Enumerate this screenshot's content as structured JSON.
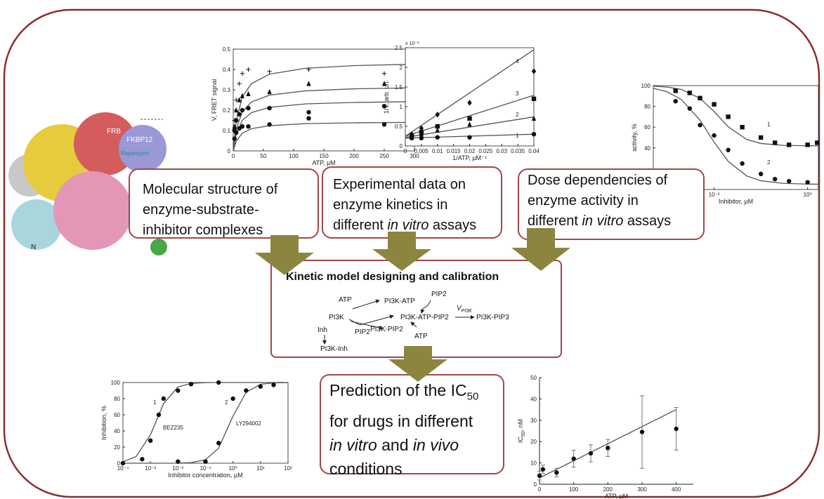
{
  "protein": {
    "labels": [
      "FRB",
      "FKBP12",
      "Rapamycin",
      "N"
    ]
  },
  "boxes": [
    {
      "lines": [
        [
          "Molecular structure of"
        ],
        [
          "enzyme-substrate-"
        ],
        [
          "inhibitor complexes"
        ]
      ]
    },
    {
      "lines": [
        [
          "Experimental data on"
        ],
        [
          "enzyme kinetics in"
        ],
        [
          "different ",
          "in vitro",
          " assays"
        ]
      ]
    },
    {
      "lines": [
        [
          "Dose dependencies of"
        ],
        [
          "enzyme activity in"
        ],
        [
          "different ",
          "in vitro",
          " assays"
        ]
      ]
    },
    {
      "lines": [
        [
          "Prediction of the IC",
          "50"
        ],
        [
          "for drugs in different"
        ],
        [
          "in vitro",
          " and ",
          "in vivo"
        ],
        [
          "conditions"
        ]
      ]
    }
  ],
  "model": {
    "title": "Kinetic model designing and calibration",
    "labels": [
      "ATP",
      "PI3K-ATP",
      "PIP2",
      "PI3K",
      "PI3K-ATP-PIP2",
      "V",
      "PI3K",
      "PI3K-PIP3",
      "Inh",
      "PIP2",
      "PI3K-PIP2",
      "ATP",
      "PI3K-Inh"
    ]
  },
  "charts": [
    {
      "type": "scatter",
      "frame": "box",
      "xlabel": "ATP, µM",
      "ylabel": "V, FRET signal",
      "xlim": [
        0,
        300
      ],
      "ylim": [
        0,
        0.5
      ],
      "xticks": [
        0,
        50,
        100,
        150,
        200,
        250,
        300
      ],
      "yticks": [
        0,
        0.1,
        0.2,
        0.3,
        0.4,
        0.5
      ],
      "series": [
        {
          "marker": "plus",
          "x": [
            2,
            5,
            10,
            15,
            25,
            60,
            125,
            250
          ],
          "values": [
            0.15,
            0.25,
            0.33,
            0.38,
            0.4,
            0.39,
            0.4,
            0.38
          ]
        },
        {
          "marker": "triangle",
          "x": [
            2,
            5,
            10,
            15,
            25,
            60,
            125,
            250
          ],
          "values": [
            0.12,
            0.2,
            0.25,
            0.27,
            0.28,
            0.29,
            0.33,
            0.33
          ]
        },
        {
          "marker": "circle",
          "x": [
            2,
            5,
            10,
            15,
            25,
            60,
            125,
            250
          ],
          "values": [
            0.1,
            0.15,
            0.18,
            0.2,
            0.21,
            0.21,
            0.19,
            0.22
          ]
        },
        {
          "marker": "circle",
          "x": [
            2,
            5,
            10,
            15,
            25,
            60,
            125,
            250
          ],
          "values": [
            0.06,
            0.09,
            0.11,
            0.12,
            0.12,
            0.13,
            0.16,
            0.13
          ]
        }
      ],
      "fits": [
        {
          "x": [
            0,
            5,
            15,
            30,
            60,
            120,
            200,
            300
          ],
          "values": [
            0,
            0.147,
            0.264,
            0.33,
            0.377,
            0.406,
            0.419,
            0.426
          ]
        },
        {
          "x": [
            0,
            5,
            15,
            30,
            60,
            120,
            200,
            300
          ],
          "values": [
            0,
            0.107,
            0.192,
            0.24,
            0.274,
            0.295,
            0.305,
            0.31
          ]
        },
        {
          "x": [
            0,
            5,
            15,
            30,
            60,
            120,
            200,
            300
          ],
          "values": [
            0,
            0.083,
            0.15,
            0.188,
            0.214,
            0.231,
            0.238,
            0.242
          ]
        },
        {
          "x": [
            0,
            5,
            15,
            30,
            60,
            120,
            200,
            300
          ],
          "values": [
            0,
            0.048,
            0.087,
            0.109,
            0.124,
            0.134,
            0.138,
            0.14
          ]
        }
      ]
    },
    {
      "type": "scatter",
      "frame": "box",
      "xlabel": "1/ATP, µM⁻¹",
      "ylabel": "1/V, arb. un.",
      "ylabel_scale": "x 10⁻³",
      "xlim": [
        0,
        0.04
      ],
      "ylim": [
        0,
        2.5
      ],
      "xticks": [
        0,
        0.005,
        0.01,
        0.015,
        0.02,
        0.025,
        0.03,
        0.035,
        0.04
      ],
      "yticks": [
        0,
        0.5,
        1,
        1.5,
        2,
        2.5
      ],
      "annotations": [
        "4",
        "3",
        "2",
        "1"
      ],
      "series": [
        {
          "marker": "diamond",
          "x": [
            0.002,
            0.005,
            0.01,
            0.02,
            0.04
          ],
          "values": [
            0.3,
            0.45,
            0.8,
            1.1,
            1.9
          ]
        },
        {
          "marker": "square",
          "x": [
            0.002,
            0.005,
            0.01,
            0.02,
            0.04
          ],
          "values": [
            0.25,
            0.35,
            0.5,
            0.7,
            1.2
          ]
        },
        {
          "marker": "triangle",
          "x": [
            0.002,
            0.005,
            0.01,
            0.02,
            0.04
          ],
          "values": [
            0.22,
            0.3,
            0.4,
            0.55,
            0.7
          ]
        },
        {
          "marker": "circle",
          "x": [
            0.002,
            0.005,
            0.01,
            0.02,
            0.04
          ],
          "values": [
            0.2,
            0.2,
            0.22,
            0.22,
            0.3
          ]
        }
      ],
      "fits": [
        {
          "x": [
            0,
            0.04
          ],
          "values": [
            0.25,
            2.45
          ]
        },
        {
          "x": [
            0,
            0.04
          ],
          "values": [
            0.25,
            1.29
          ]
        },
        {
          "x": [
            0,
            0.04
          ],
          "values": [
            0.22,
            0.74
          ]
        },
        {
          "x": [
            0,
            0.04
          ],
          "values": [
            0.2,
            0.3
          ]
        }
      ]
    },
    {
      "type": "scatter",
      "frame": "box",
      "xlog": true,
      "xlabel": "Inhibitor, µM",
      "ylabel": "activity, %",
      "xlim": [
        0.0005,
        1.7
      ],
      "ylim": [
        0,
        100
      ],
      "xticks": [
        {
          "value": 0.01,
          "label": "10⁻²"
        },
        {
          "value": 1,
          "label": "10⁰"
        }
      ],
      "yticks": [
        40,
        60,
        80,
        100
      ],
      "annotations": [
        "1",
        "2"
      ],
      "series": [
        {
          "marker": "square",
          "x": [
            0.0015,
            0.003,
            0.005,
            0.01,
            0.02,
            0.04,
            0.1,
            0.2,
            0.4,
            1,
            1.6
          ],
          "values": [
            95,
            93,
            88,
            82,
            70,
            60,
            50,
            45,
            43,
            43,
            45
          ]
        },
        {
          "marker": "circle",
          "x": [
            0.0015,
            0.003,
            0.005,
            0.01,
            0.02,
            0.04,
            0.1,
            0.2,
            0.4,
            1
          ],
          "values": [
            85,
            78,
            62,
            52,
            38,
            25,
            15,
            10,
            8,
            7
          ]
        }
      ],
      "fits": [
        {
          "x": [
            0.0005,
            0.001,
            0.002,
            0.005,
            0.01,
            0.02,
            0.05,
            0.1,
            0.3,
            1,
            1.7
          ],
          "values": [
            99.5,
            98.6,
            96.3,
            87.7,
            75,
            60.4,
            48.1,
            44.3,
            42.5,
            42.1,
            42
          ]
        },
        {
          "x": [
            0.0005,
            0.001,
            0.002,
            0.005,
            0.01,
            0.02,
            0.05,
            0.1,
            0.3,
            1,
            1.7
          ],
          "values": [
            97.5,
            94,
            86.5,
            66.7,
            45.6,
            27.1,
            13,
            8.4,
            5.9,
            5.2,
            5.1
          ]
        }
      ]
    },
    {
      "type": "scatter",
      "frame": "box",
      "xlog": true,
      "xlabel": "Inhibitor concentration, µM",
      "ylabel": "Inhibition, %",
      "xlim": [
        0.0001,
        100
      ],
      "ylim": [
        0,
        100
      ],
      "xticks": [
        {
          "value": 0.0001,
          "label": "10⁻⁴"
        },
        {
          "value": 0.001,
          "label": "10⁻³"
        },
        {
          "value": 0.01,
          "label": "10⁻²"
        },
        {
          "value": 0.1,
          "label": "10⁻¹"
        },
        {
          "value": 1,
          "label": "10⁰"
        },
        {
          "value": 10,
          "label": "10¹"
        },
        {
          "value": 100,
          "label": "10²"
        }
      ],
      "yticks": [
        0,
        20,
        40,
        60,
        80,
        100
      ],
      "annotations": [
        "1",
        "2",
        "BEZ235",
        "LY294002"
      ],
      "series": [
        {
          "marker": "circle",
          "x": [
            0.0001,
            0.0005,
            0.001,
            0.002,
            0.003,
            0.01,
            0.03,
            0.3
          ],
          "values": [
            0,
            5,
            28,
            60,
            80,
            90,
            98,
            100
          ]
        },
        {
          "marker": "circle",
          "x": [
            0.01,
            0.1,
            0.3,
            1,
            3,
            10,
            30
          ],
          "values": [
            2,
            2,
            25,
            80,
            90,
            95,
            97
          ]
        }
      ],
      "fits": [
        {
          "x": [
            0.0001,
            0.0003,
            0.001,
            0.003,
            0.01,
            0.03,
            0.1,
            0.3,
            1,
            3,
            10,
            30,
            100
          ],
          "values": [
            1.7,
            8.2,
            35.2,
            73.9,
            94.5,
            98.9,
            99.8,
            100,
            100,
            100,
            100,
            100,
            100
          ]
        },
        {
          "x": [
            0.0001,
            0.0003,
            0.001,
            0.003,
            0.01,
            0.03,
            0.1,
            0.3,
            1,
            3,
            10,
            30,
            100
          ],
          "values": [
            0,
            0,
            0,
            0,
            0.1,
            0.7,
            4.2,
            18.7,
            58.3,
            87.9,
            97.8,
            99.5,
            99.9
          ]
        }
      ]
    },
    {
      "type": "scatter",
      "frame": "axes",
      "xlabel": "ATP, µM",
      "ylabel": [
        "IC",
        "50",
        ", nM"
      ],
      "xlim": [
        0,
        450
      ],
      "ylim": [
        0,
        50
      ],
      "xticks": [
        0,
        100,
        200,
        300,
        400
      ],
      "yticks": [
        0,
        10,
        20,
        30,
        40,
        50
      ],
      "series": [
        {
          "marker": "circle",
          "x": [
            0,
            10,
            50,
            100,
            150,
            200,
            300,
            400
          ],
          "values": [
            4,
            7,
            5.5,
            12,
            14.5,
            17,
            24.5,
            26
          ],
          "errors": [
            2,
            2,
            2,
            4,
            4,
            4,
            17,
            10
          ]
        }
      ],
      "fits": [
        {
          "x": [
            0,
            400
          ],
          "values": [
            3,
            35
          ]
        }
      ]
    }
  ]
}
